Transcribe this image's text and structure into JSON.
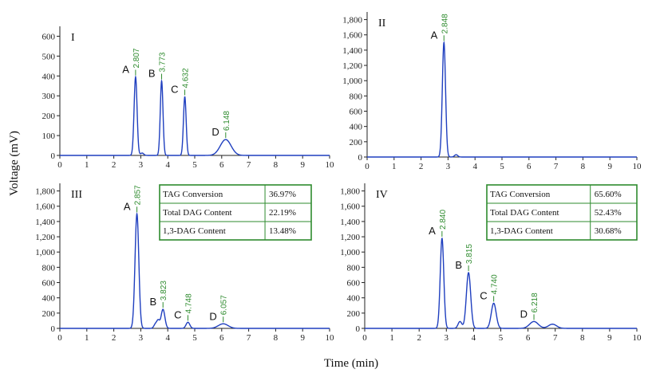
{
  "figure": {
    "ylabel": "Voltage (mV)",
    "xlabel": "Time (min)"
  },
  "colors": {
    "trace": "#1f3fbf",
    "annotation": "#2e8b2e",
    "axis": "#222222"
  },
  "chart_data": [
    {
      "type": "line",
      "panel": "I",
      "xlim": [
        0,
        10
      ],
      "ylim": [
        0,
        650
      ],
      "xticks": [
        0,
        1,
        2,
        3,
        4,
        5,
        6,
        7,
        8,
        9,
        10
      ],
      "xtick_labels": [
        "0",
        "1",
        "2",
        "3",
        "4",
        "5",
        "6",
        "7",
        "8",
        "9",
        "10"
      ],
      "yticks": [
        0,
        100,
        200,
        300,
        400,
        500,
        600
      ],
      "ytick_labels": [
        "0",
        "100",
        "200",
        "300",
        "400",
        "500",
        "600"
      ],
      "peaks": [
        {
          "letter": "A",
          "rt_label": "2.807",
          "x": 2.807,
          "height": 395,
          "width": 0.055
        },
        {
          "letter": "B",
          "rt_label": "3.773",
          "x": 3.773,
          "height": 375,
          "width": 0.05
        },
        {
          "letter": "C",
          "rt_label": "4.632",
          "x": 4.632,
          "height": 295,
          "width": 0.05
        },
        {
          "letter": "D",
          "rt_label": "6.148",
          "x": 6.148,
          "height": 80,
          "width": 0.2
        }
      ],
      "minor_peaks": [
        {
          "x": 3.05,
          "height": 12,
          "width": 0.06
        }
      ],
      "table": []
    },
    {
      "type": "line",
      "panel": "II",
      "xlim": [
        0,
        10
      ],
      "ylim": [
        0,
        1900
      ],
      "xticks": [
        0,
        1,
        2,
        3,
        4,
        5,
        6,
        7,
        8,
        9,
        10
      ],
      "xtick_labels": [
        "0",
        "1",
        "2",
        "3",
        "4",
        "5",
        "6",
        "7",
        "8",
        "9",
        "10"
      ],
      "yticks": [
        0,
        200,
        400,
        600,
        800,
        1000,
        1200,
        1400,
        1600,
        1800
      ],
      "ytick_labels": [
        "0",
        "200",
        "400",
        "600",
        "800",
        "1,000",
        "1,200",
        "1,400",
        "1,600",
        "1,800"
      ],
      "peaks": [
        {
          "letter": "A",
          "rt_label": "2.848",
          "x": 2.848,
          "height": 1500,
          "width": 0.06
        }
      ],
      "minor_peaks": [
        {
          "x": 3.3,
          "height": 30,
          "width": 0.06
        }
      ],
      "table": []
    },
    {
      "type": "line",
      "panel": "III",
      "xlim": [
        0,
        10
      ],
      "ylim": [
        0,
        1900
      ],
      "xticks": [
        0,
        1,
        2,
        3,
        4,
        5,
        6,
        7,
        8,
        9,
        10
      ],
      "xtick_labels": [
        "0",
        "1",
        "2",
        "3",
        "4",
        "5",
        "6",
        "7",
        "8",
        "9",
        "10"
      ],
      "yticks": [
        0,
        200,
        400,
        600,
        800,
        1000,
        1200,
        1400,
        1600,
        1800
      ],
      "ytick_labels": [
        "0",
        "200",
        "400",
        "600",
        "800",
        "1,000",
        "1,200",
        "1,400",
        "1,600",
        "1,800"
      ],
      "peaks": [
        {
          "letter": "A",
          "rt_label": "2.857",
          "x": 2.857,
          "height": 1500,
          "width": 0.07
        },
        {
          "letter": "B",
          "rt_label": "3.823",
          "x": 3.823,
          "height": 250,
          "width": 0.07
        },
        {
          "letter": "C",
          "rt_label": "4.748",
          "x": 4.748,
          "height": 80,
          "width": 0.07
        },
        {
          "letter": "D",
          "rt_label": "6.057",
          "x": 6.057,
          "height": 60,
          "width": 0.18
        }
      ],
      "minor_peaks": [
        {
          "x": 3.55,
          "height": 60,
          "width": 0.06
        },
        {
          "x": 3.65,
          "height": 90,
          "width": 0.05
        }
      ],
      "table": [
        {
          "label": "TAG Conversion",
          "value": "36.97%"
        },
        {
          "label": "Total DAG Content",
          "value": "22.19%"
        },
        {
          "label": "1,3-DAG Content",
          "value": "13.48%"
        }
      ]
    },
    {
      "type": "line",
      "panel": "IV",
      "xlim": [
        0,
        10
      ],
      "ylim": [
        0,
        1900
      ],
      "xticks": [
        0,
        1,
        2,
        3,
        4,
        5,
        6,
        7,
        8,
        9,
        10
      ],
      "xtick_labels": [
        "0",
        "1",
        "2",
        "3",
        "4",
        "5",
        "6",
        "7",
        "8",
        "9",
        "10"
      ],
      "yticks": [
        0,
        200,
        400,
        600,
        800,
        1000,
        1200,
        1400,
        1600,
        1800
      ],
      "ytick_labels": [
        "0",
        "200",
        "400",
        "600",
        "800",
        "1,000",
        "1,200",
        "1,400",
        "1,600",
        "1,800"
      ],
      "peaks": [
        {
          "letter": "A",
          "rt_label": "2.840",
          "x": 2.84,
          "height": 1180,
          "width": 0.065
        },
        {
          "letter": "B",
          "rt_label": "3.815",
          "x": 3.815,
          "height": 730,
          "width": 0.08
        },
        {
          "letter": "C",
          "rt_label": "4.740",
          "x": 4.74,
          "height": 330,
          "width": 0.09
        },
        {
          "letter": "D",
          "rt_label": "6.218",
          "x": 6.218,
          "height": 90,
          "width": 0.16
        }
      ],
      "minor_peaks": [
        {
          "x": 3.5,
          "height": 90,
          "width": 0.07
        },
        {
          "x": 6.9,
          "height": 55,
          "width": 0.15
        }
      ],
      "table": [
        {
          "label": "TAG Conversion",
          "value": "65.60%"
        },
        {
          "label": "Total DAG Content",
          "value": "52.43%"
        },
        {
          "label": "1,3-DAG Content",
          "value": "30.68%"
        }
      ]
    }
  ]
}
